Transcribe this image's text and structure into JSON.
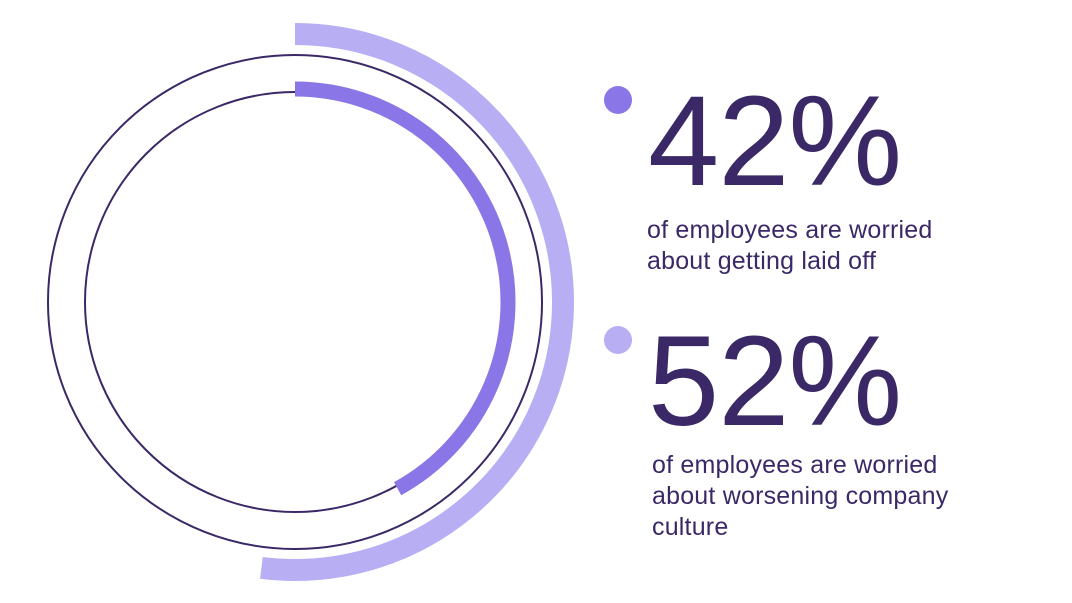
{
  "colors": {
    "background": "#ffffff",
    "text": "#3b2866",
    "outline": "#3b2866",
    "outer_arc": "#b8aef4",
    "inner_arc": "#8a76e6"
  },
  "stats": [
    {
      "value": "42%",
      "description_lines": [
        "of employees are worried",
        "about getting laid off"
      ],
      "dot_color": "#8a76e6"
    },
    {
      "value": "52%",
      "description_lines": [
        "of employees are worried",
        "about worsening company",
        "culture"
      ],
      "dot_color": "#b8aef4"
    }
  ],
  "chart_data": {
    "type": "radial-bar",
    "series": [
      {
        "value": 52,
        "ring": "outer",
        "color": "#b8aef4"
      },
      {
        "value": 42,
        "ring": "inner",
        "color": "#8a76e6"
      }
    ],
    "max": 100
  }
}
